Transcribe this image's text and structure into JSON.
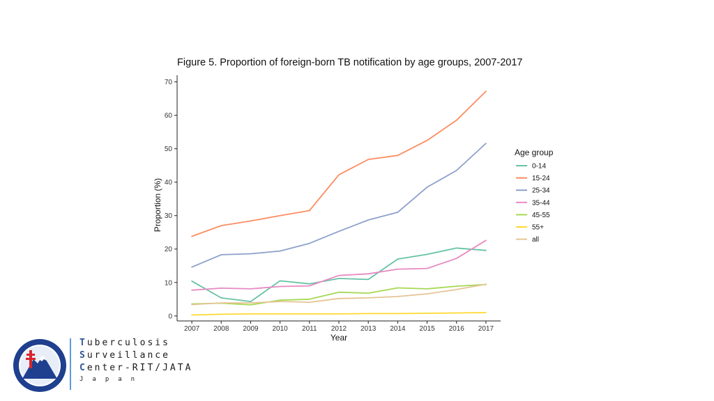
{
  "chart_data": {
    "type": "line",
    "title": "Figure 5. Proportion of foreign-born TB notification by age groups, 2007-2017",
    "xlabel": "Year",
    "ylabel": "Proportion (%)",
    "x": [
      2007,
      2008,
      2009,
      2010,
      2011,
      2012,
      2013,
      2014,
      2015,
      2016,
      2017
    ],
    "ylim": [
      -1.5,
      72
    ],
    "yticks": [
      0,
      10,
      20,
      30,
      40,
      50,
      60,
      70
    ],
    "legend_title": "Age group",
    "legend_position": "right",
    "grid": false,
    "series": [
      {
        "name": "0-14",
        "color": "#66c2a5",
        "values": [
          10.4,
          5.4,
          4.3,
          10.5,
          9.6,
          11.2,
          10.9,
          17.0,
          18.4,
          20.3,
          19.6
        ]
      },
      {
        "name": "15-24",
        "color": "#fc8d62",
        "values": [
          23.8,
          27.0,
          28.4,
          30.0,
          31.5,
          42.2,
          46.8,
          48.0,
          52.5,
          58.5,
          67.2
        ]
      },
      {
        "name": "25-34",
        "color": "#8da0cb",
        "values": [
          14.6,
          18.3,
          18.6,
          19.4,
          21.7,
          25.3,
          28.7,
          31.0,
          38.5,
          43.5,
          51.6
        ]
      },
      {
        "name": "35-44",
        "color": "#e78ac3",
        "values": [
          7.7,
          8.3,
          8.1,
          8.8,
          9.0,
          12.1,
          12.6,
          14.0,
          14.2,
          17.2,
          22.6
        ]
      },
      {
        "name": "45-55",
        "color": "#a6d854",
        "values": [
          3.6,
          3.8,
          3.3,
          4.7,
          5.0,
          7.1,
          6.8,
          8.4,
          8.1,
          8.9,
          9.4
        ]
      },
      {
        "name": "55+",
        "color": "#ffd92f",
        "values": [
          0.3,
          0.5,
          0.6,
          0.6,
          0.6,
          0.6,
          0.7,
          0.7,
          0.8,
          0.9,
          1.0
        ]
      },
      {
        "name": "all",
        "color": "#e5c494",
        "values": [
          3.4,
          3.9,
          3.9,
          4.3,
          4.1,
          5.2,
          5.4,
          5.8,
          6.6,
          7.9,
          9.5
        ]
      }
    ]
  },
  "brand": {
    "lines": [
      {
        "cap": "T",
        "rest": "uberculosis"
      },
      {
        "cap": "S",
        "rest": "urveillance"
      },
      {
        "cap": "C",
        "rest": "enter-RIT/JATA"
      }
    ],
    "sub": "Japan"
  },
  "colors": {
    "accent": "#2f5597",
    "divider": "#5b9bd5",
    "logo_red": "#d9262c",
    "logo_blue": "#1f3f8f"
  }
}
